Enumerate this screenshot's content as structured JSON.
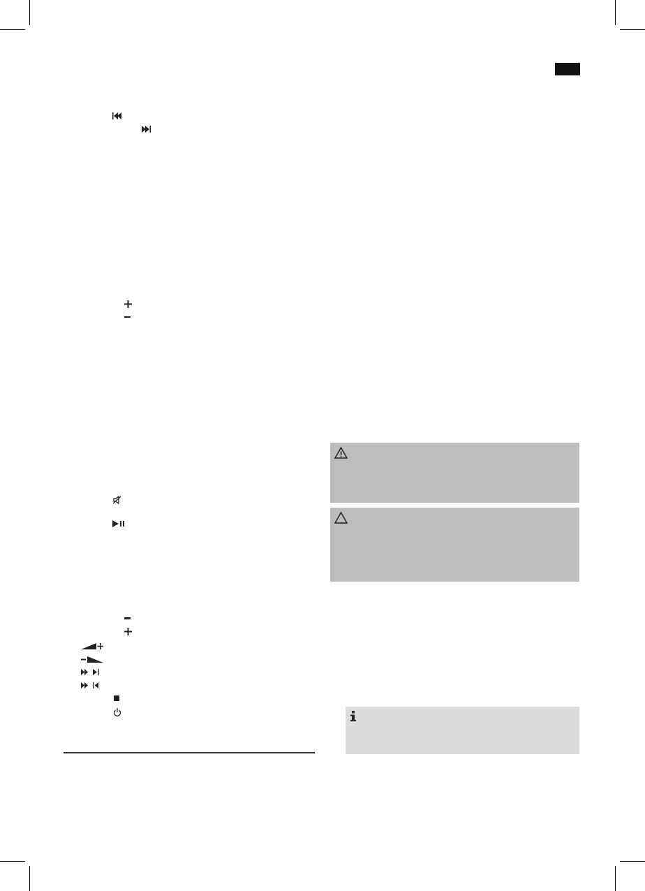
{
  "colors": {
    "warning_box": "#bdbdbd",
    "info_box": "#dcdcdc",
    "language_tab": "#111111",
    "rule": "#333333"
  },
  "icons": {
    "top": [
      "previous-track-icon",
      "next-track-icon",
      "plus-icon",
      "minus-icon",
      "mute-icon",
      "play-pause-icon"
    ],
    "bottom": [
      "minus-icon",
      "plus-icon",
      "volume-up-icon",
      "volume-down-icon",
      "fast-forward-next-icon",
      "fast-forward-previous-icon",
      "stop-icon",
      "power-icon"
    ],
    "notices": [
      "warning-exclamation-icon",
      "caution-triangle-icon",
      "info-icon"
    ]
  }
}
